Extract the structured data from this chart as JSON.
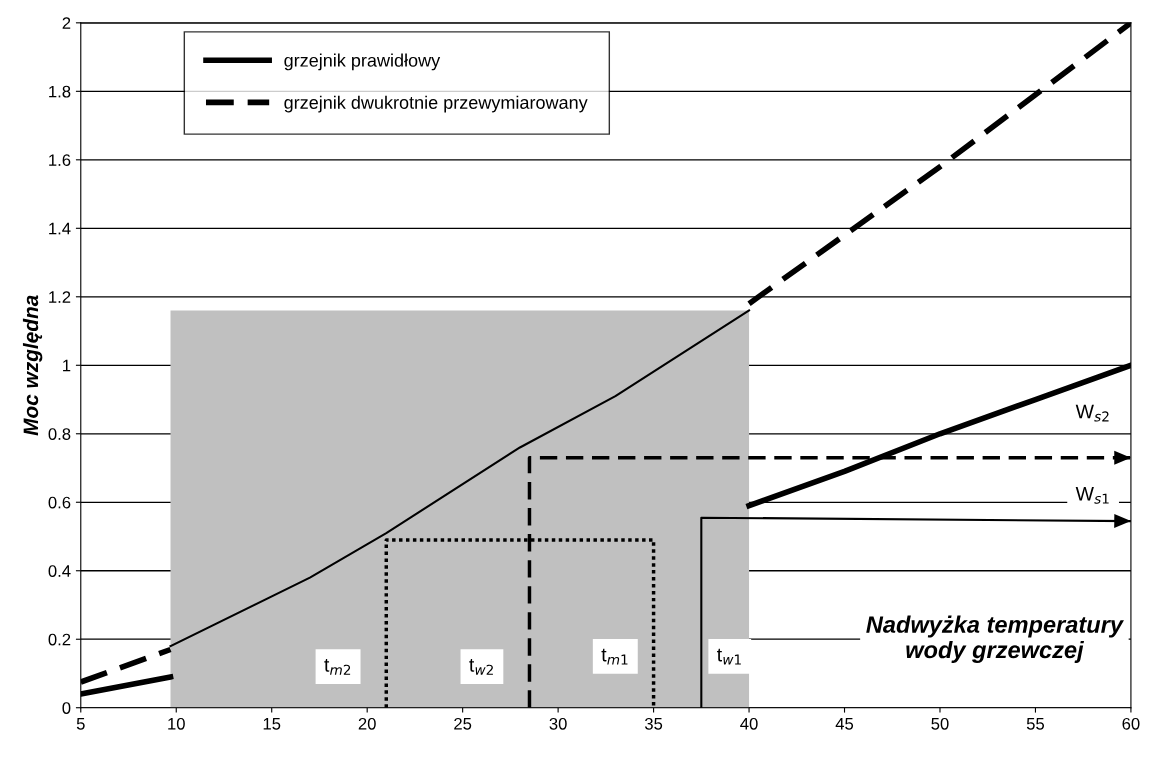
{
  "chart_data": {
    "type": "line",
    "ylabel": "Moc względna",
    "xlim": [
      5,
      60
    ],
    "xticks": [
      5,
      10,
      15,
      20,
      25,
      30,
      35,
      40,
      45,
      50,
      55,
      60
    ],
    "ylim": [
      0,
      2
    ],
    "yticks": [
      0,
      0.2,
      0.4,
      0.6,
      0.8,
      1,
      1.2,
      1.4,
      1.6,
      1.8,
      2
    ],
    "grid": "y",
    "legend": "top left",
    "series": [
      {
        "type": "area",
        "color": "#c0c0c0",
        "x": [
          9.7,
          40
        ],
        "values": [
          1.16,
          1.16
        ]
      },
      {
        "name": "grzejnik prawidłowy",
        "color": "#000000",
        "line_style": "solid",
        "x": [
          5,
          9.7,
          20,
          40,
          45,
          50,
          55,
          60
        ],
        "values": [
          0.04,
          0.09,
          null,
          0.59,
          0.69,
          0.8,
          0.9,
          1.0
        ]
      },
      {
        "name": "grzejnik dwukrotnie przewymiarowany",
        "color": "#000000",
        "line_style": "dashed",
        "x": [
          5,
          9.7,
          20,
          40,
          45,
          50,
          55,
          60
        ],
        "values": [
          0.075,
          0.17,
          null,
          1.18,
          1.38,
          1.58,
          1.79,
          2.0
        ]
      },
      {
        "color": "#000000",
        "line_style": "solid",
        "x": [
          9.7,
          17,
          21,
          28,
          33,
          40
        ],
        "values": [
          0.18,
          0.38,
          0.51,
          0.76,
          0.91,
          1.16
        ]
      },
      {
        "color": "#000000",
        "line_style": "dotted",
        "x": [
          21,
          21,
          35,
          35
        ],
        "values": [
          0,
          0.49,
          0.49,
          0
        ]
      },
      {
        "color": "#000000",
        "line_style": "dashed",
        "x": [
          28.5,
          28.5,
          60
        ],
        "values": [
          0,
          0.73,
          0.73
        ]
      },
      {
        "color": "#000000",
        "line_style": "solid",
        "x": [
          37.5,
          37.5,
          60
        ],
        "values": [
          0,
          0.555,
          0.545
        ]
      }
    ],
    "annotations": [
      "t$_{m2}$",
      "t$_{w2}$",
      "t$_{m1}$",
      "t$_{w1}$",
      "W$_{s2}$",
      "W$_{s1}$",
      "Nadwyżka temperatury\nwody grzewczej"
    ]
  }
}
